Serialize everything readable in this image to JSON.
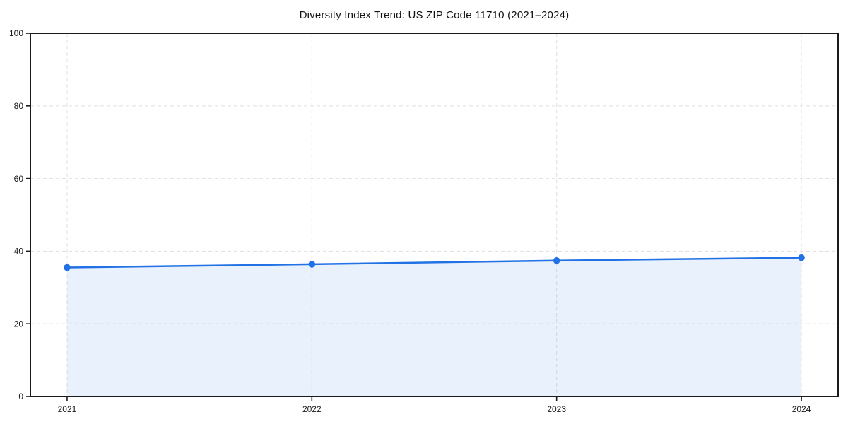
{
  "chart_data": {
    "type": "line",
    "title": "Diversity Index Trend: US ZIP Code 11710 (2021–2024)",
    "categories": [
      "2021",
      "2022",
      "2023",
      "2024"
    ],
    "values": [
      35.5,
      36.4,
      37.4,
      38.2
    ],
    "xlabel": "",
    "ylabel": "",
    "ylim": [
      0,
      100
    ],
    "yticks": [
      0,
      20,
      40,
      60,
      80,
      100
    ],
    "grid": true,
    "grid_style": "dashed",
    "area_fill": true,
    "marker": "circle",
    "legend": "none",
    "colors": {
      "line": "#2272e5",
      "marker": "#2272e5",
      "area": "#2272e5",
      "area_opacity": 0.1,
      "grid": "#e3e3e3",
      "axis": "#1a1a1a",
      "tick_text": "#1a1a1a",
      "title_text": "#111111",
      "background": "#ffffff"
    }
  }
}
